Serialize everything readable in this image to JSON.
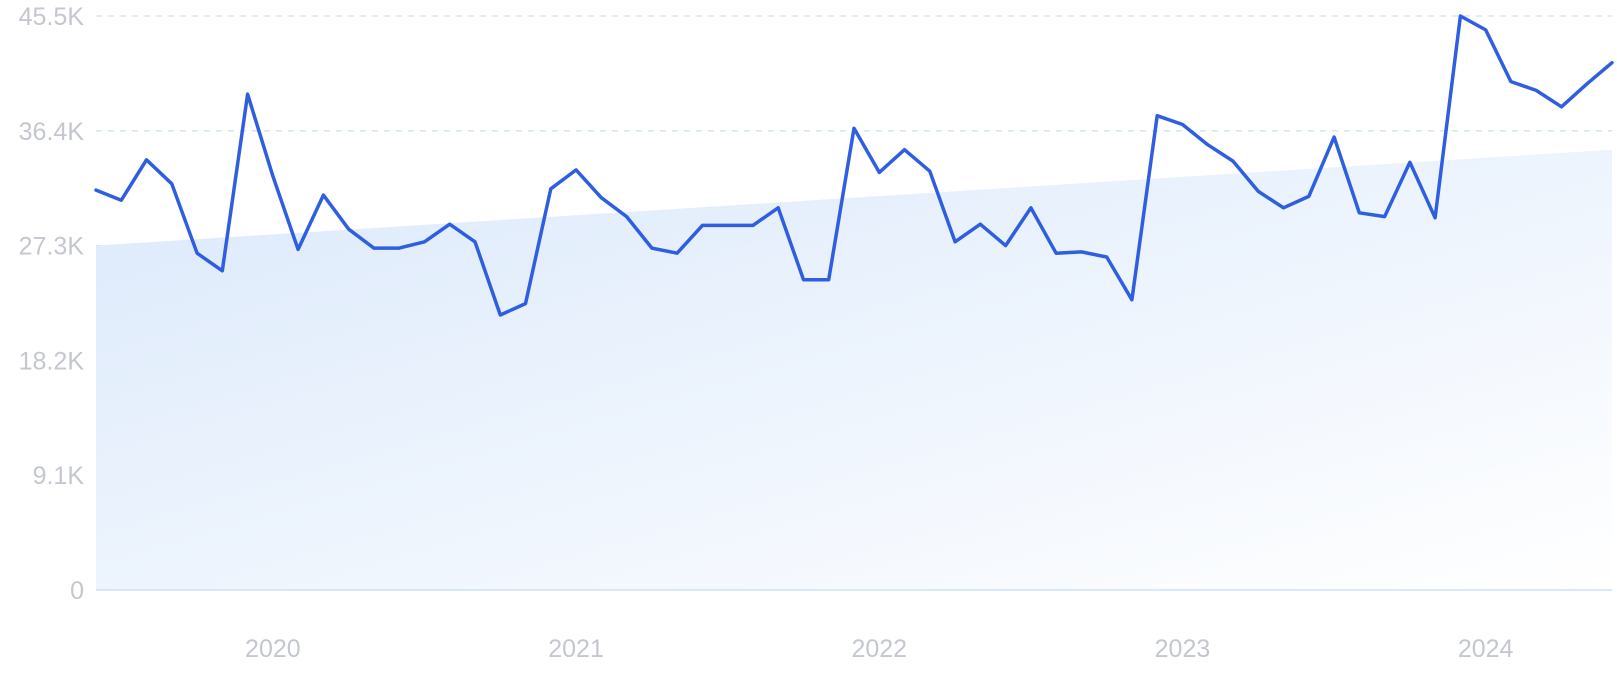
{
  "chart_data": {
    "type": "line",
    "title": "",
    "xlabel": "",
    "ylabel": "",
    "grid": true,
    "legend": "none",
    "ylim": [
      0,
      45500
    ],
    "xlim": [
      "2019-06",
      "2024-06"
    ],
    "y_ticks": [
      "0",
      "9.1K",
      "18.2K",
      "27.3K",
      "36.4K",
      "45.5K"
    ],
    "x_ticks": [
      "2020",
      "2021",
      "2022",
      "2023",
      "2024"
    ],
    "colors": {
      "line": "#2f5fe0",
      "trend_fill": "#dbe9fb",
      "grid": "#cfe4ee",
      "tick_text": "#c4c7cf"
    },
    "trend": {
      "start": 27300,
      "end": 34900
    },
    "series": [
      {
        "x": [
          "2019-06",
          "2019-07",
          "2019-08",
          "2019-09",
          "2019-10",
          "2019-11",
          "2019-12",
          "2020-01",
          "2020-02",
          "2020-03",
          "2020-04",
          "2020-05",
          "2020-06",
          "2020-07",
          "2020-08",
          "2020-09",
          "2020-10",
          "2020-11",
          "2020-12",
          "2021-01",
          "2021-02",
          "2021-03",
          "2021-04",
          "2021-05",
          "2021-06",
          "2021-07",
          "2021-08",
          "2021-09",
          "2021-10",
          "2021-11",
          "2021-12",
          "2022-01",
          "2022-02",
          "2022-03",
          "2022-04",
          "2022-05",
          "2022-06",
          "2022-07",
          "2022-08",
          "2022-09",
          "2022-10",
          "2022-11",
          "2022-12",
          "2023-01",
          "2023-02",
          "2023-03",
          "2023-04",
          "2023-05",
          "2023-06",
          "2023-07",
          "2023-08",
          "2023-09",
          "2023-10",
          "2023-11",
          "2023-12",
          "2024-01",
          "2024-02",
          "2024-03",
          "2024-04",
          "2024-05",
          "2024-06"
        ],
        "values": [
          31700,
          30900,
          34100,
          32200,
          26700,
          25300,
          39300,
          32800,
          27000,
          31300,
          28600,
          27100,
          27100,
          27600,
          29000,
          27600,
          21800,
          22700,
          31800,
          33300,
          31100,
          29600,
          27100,
          26700,
          28900,
          28900,
          28900,
          30300,
          24600,
          24600,
          36600,
          33100,
          34900,
          33200,
          27600,
          29000,
          27300,
          30300,
          26700,
          26800,
          26400,
          23000,
          37600,
          36900,
          35300,
          34000,
          31600,
          30300,
          31200,
          35900,
          29900,
          29600,
          33900,
          29500,
          45500,
          44400,
          40300,
          39600,
          38300,
          40100,
          41800
        ]
      }
    ]
  }
}
